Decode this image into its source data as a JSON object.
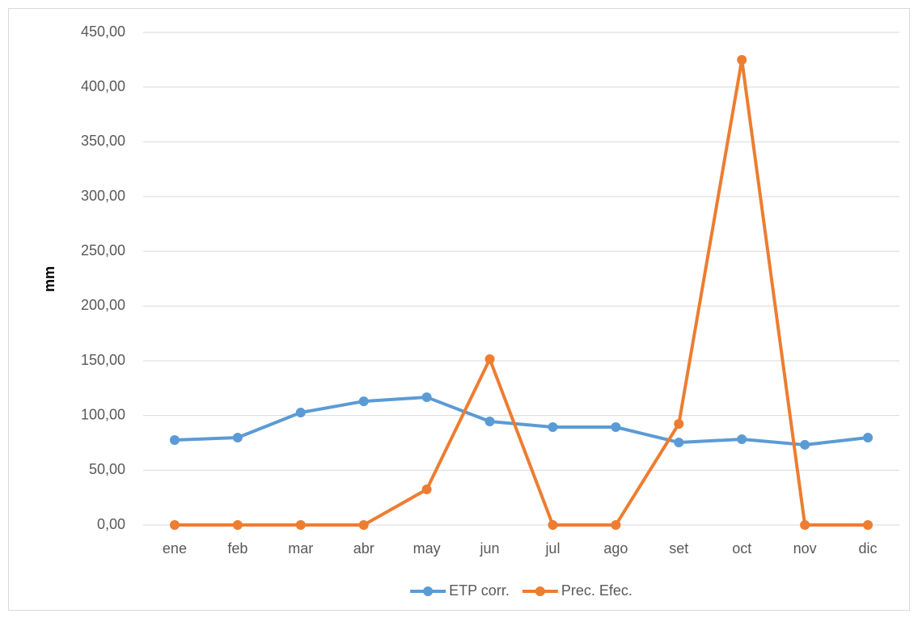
{
  "chart_data": {
    "type": "line",
    "y_label": "mm",
    "categories": [
      "ene",
      "feb",
      "mar",
      "abr",
      "may",
      "jun",
      "jul",
      "ago",
      "set",
      "oct",
      "nov",
      "dic"
    ],
    "series": [
      {
        "name": "ETP corr.",
        "color": "#5b9bd5",
        "values": [
          77.6,
          79.8,
          102.7,
          113,
          116.7,
          94.6,
          89.4,
          89.4,
          75.4,
          78.3,
          73.2,
          79.8
        ]
      },
      {
        "name": "Prec. Efec.",
        "color": "#ed7d31",
        "values": [
          0,
          0,
          0,
          0,
          32.5,
          151.5,
          0,
          0,
          92.4,
          424.9,
          0,
          0
        ]
      }
    ],
    "ylim": [
      0,
      450
    ],
    "yticks": [
      {
        "value": 0,
        "label": "0,00"
      },
      {
        "value": 50,
        "label": "50,00"
      },
      {
        "value": 100,
        "label": "100,00"
      },
      {
        "value": 150,
        "label": "150,00"
      },
      {
        "value": 200,
        "label": "200,00"
      },
      {
        "value": 250,
        "label": "250,00"
      },
      {
        "value": 300,
        "label": "300,00"
      },
      {
        "value": 350,
        "label": "350,00"
      },
      {
        "value": 400,
        "label": "400,00"
      },
      {
        "value": 450,
        "label": "450,00"
      }
    ],
    "grid": true,
    "legend": "bottom"
  }
}
